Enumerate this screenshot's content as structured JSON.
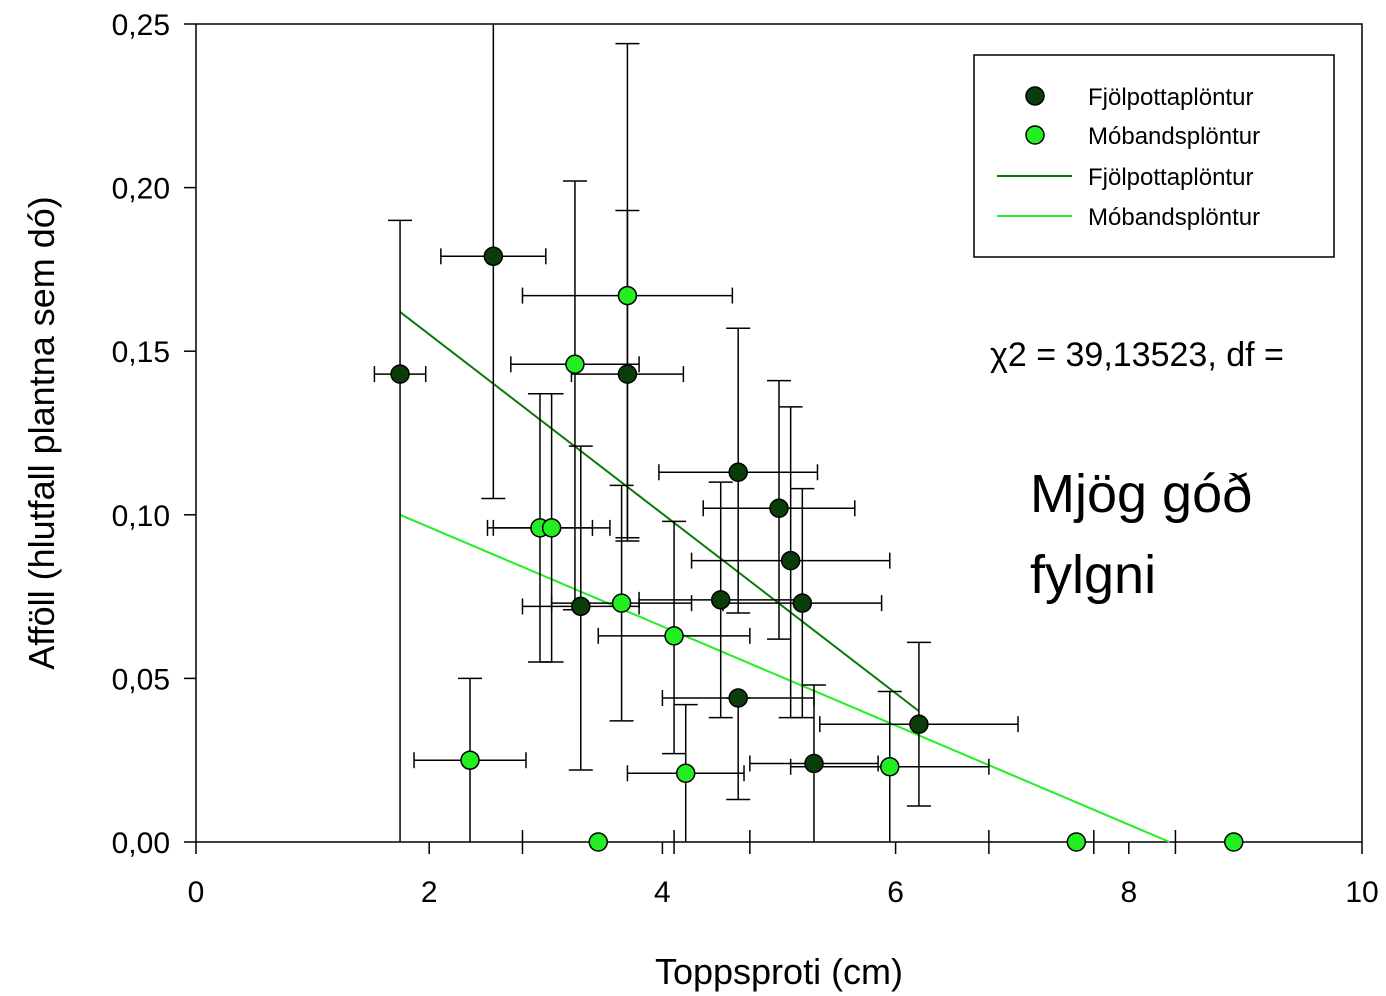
{
  "chart_data": {
    "type": "scatter",
    "xlabel": "Toppsproti (cm)",
    "ylabel": "Afföll (hlutfall plantna sem dó)",
    "xlim": [
      0,
      10
    ],
    "ylim": [
      0,
      0.25
    ],
    "x_ticks": [
      "0",
      "2",
      "4",
      "6",
      "8",
      "10"
    ],
    "y_ticks": [
      "0,00",
      "0,05",
      "0,10",
      "0,15",
      "0,20",
      "0,25"
    ],
    "grid": false,
    "legend_position": "top-right",
    "legend": [
      {
        "label": "Fjölpottaplöntur",
        "kind": "marker",
        "color": "#0b3d0b"
      },
      {
        "label": "Móbandsplöntur",
        "kind": "marker",
        "color": "#22ee22"
      },
      {
        "label": "Fjölpottaplöntur",
        "kind": "line",
        "color": "#0a7a0a"
      },
      {
        "label": "Móbandsplöntur",
        "kind": "line",
        "color": "#22ee22"
      }
    ],
    "series": [
      {
        "name": "Fjölpottaplöntur",
        "color": "#0b3d0b",
        "points": [
          {
            "x": 1.75,
            "y": 0.143,
            "xerr": 0.22,
            "yerr": [
              0.143,
              0.047
            ]
          },
          {
            "x": 2.55,
            "y": 0.179,
            "xerr": 0.45,
            "yerr": [
              0.074,
              0.071
            ]
          },
          {
            "x": 3.3,
            "y": 0.072,
            "xerr": 0.5,
            "yerr": [
              0.05,
              0.049
            ]
          },
          {
            "x": 3.7,
            "y": 0.143,
            "xerr": 0.48,
            "yerr": [
              0.05,
              0.05
            ]
          },
          {
            "x": 4.65,
            "y": 0.113,
            "xerr": 0.68,
            "yerr": [
              0.043,
              0.044
            ]
          },
          {
            "x": 4.5,
            "y": 0.074,
            "xerr": 0.7,
            "yerr": [
              0.036,
              0.036
            ]
          },
          {
            "x": 4.65,
            "y": 0.044,
            "xerr": 0.65,
            "yerr": [
              0.031,
              0.0
            ]
          },
          {
            "x": 5.0,
            "y": 0.102,
            "xerr": 0.65,
            "yerr": [
              0.04,
              0.039
            ]
          },
          {
            "x": 5.1,
            "y": 0.086,
            "xerr": 0.85,
            "yerr": [
              0.048,
              0.047
            ]
          },
          {
            "x": 5.2,
            "y": 0.073,
            "xerr": 0.68,
            "yerr": [
              0.035,
              0.035
            ]
          },
          {
            "x": 5.3,
            "y": 0.024,
            "xerr": 0.55,
            "yerr": [
              0.024,
              0.024
            ]
          },
          {
            "x": 6.2,
            "y": 0.036,
            "xerr": 0.85,
            "yerr": [
              0.025,
              0.025
            ]
          }
        ]
      },
      {
        "name": "Móbandsplöntur",
        "color": "#22ee22",
        "points": [
          {
            "x": 2.35,
            "y": 0.025,
            "xerr": 0.48,
            "yerr": [
              0.025,
              0.025
            ]
          },
          {
            "x": 2.95,
            "y": 0.096,
            "xerr": 0.45,
            "yerr": [
              0.041,
              0.041
            ]
          },
          {
            "x": 3.05,
            "y": 0.096,
            "xerr": 0.5,
            "yerr": [
              0.041,
              0.041
            ]
          },
          {
            "x": 3.25,
            "y": 0.146,
            "xerr": 0.55,
            "yerr": [
              0.075,
              0.056
            ]
          },
          {
            "x": 3.7,
            "y": 0.167,
            "xerr": 0.9,
            "yerr": [
              0.075,
              0.077
            ]
          },
          {
            "x": 3.65,
            "y": 0.073,
            "xerr": 0.6,
            "yerr": [
              0.036,
              0.036
            ]
          },
          {
            "x": 4.1,
            "y": 0.063,
            "xerr": 0.65,
            "yerr": [
              0.036,
              0.035
            ]
          },
          {
            "x": 4.2,
            "y": 0.021,
            "xerr": 0.5,
            "yerr": [
              0.021,
              0.021
            ]
          },
          {
            "x": 3.45,
            "y": 0.0,
            "xerr": 0.0,
            "yerr": [
              0.0,
              0.0
            ]
          },
          {
            "x": 5.95,
            "y": 0.023,
            "xerr": 0.85,
            "yerr": [
              0.023,
              0.023
            ]
          },
          {
            "x": 7.55,
            "y": 0.0,
            "xerr": 0.0,
            "yerr": [
              0.0,
              0.0
            ]
          },
          {
            "x": 8.9,
            "y": 0.0,
            "xerr": 0.0,
            "yerr": [
              0.0,
              0.0
            ]
          }
        ]
      }
    ],
    "extra_ticks": [
      2.8,
      4.1,
      4.75,
      6.8,
      7.7,
      8.4
    ],
    "fit_lines": [
      {
        "name": "Fjölpottaplöntur",
        "color": "#0a7a0a",
        "x1": 1.75,
        "y1": 0.162,
        "x2": 6.2,
        "y2": 0.04
      },
      {
        "name": "Móbandsplöntur",
        "color": "#22ee22",
        "x1": 1.75,
        "y1": 0.1,
        "x2": 8.35,
        "y2": 0.0
      }
    ],
    "annotations": {
      "chi": "χ2 = 39,13523, df =",
      "text_line1": "Mjög góð",
      "text_line2": "fylgni"
    }
  }
}
